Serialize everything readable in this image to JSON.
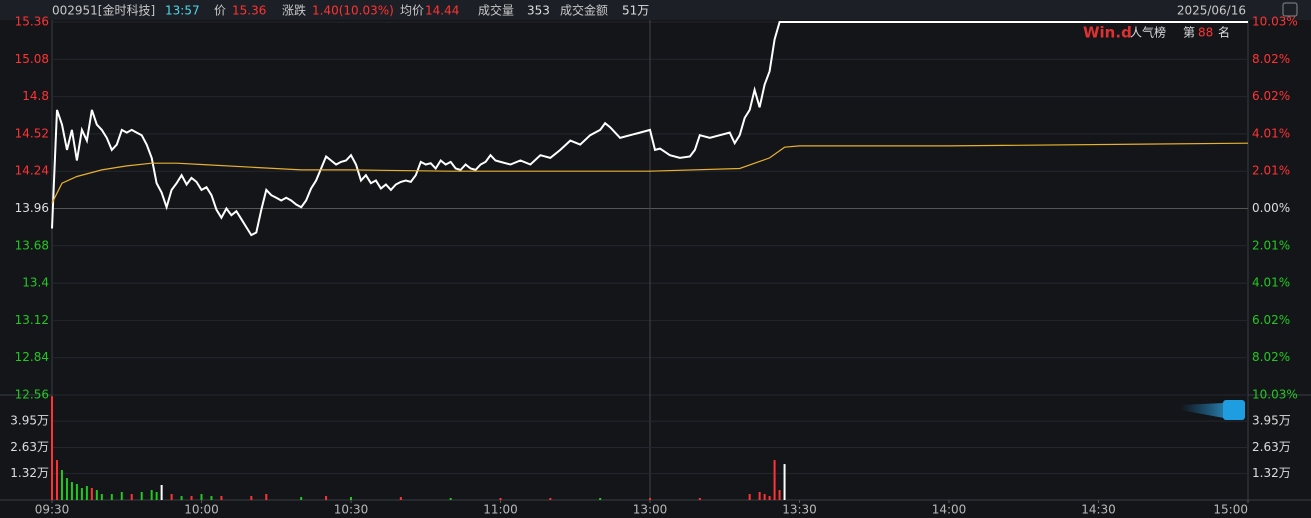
{
  "header": {
    "code": "002951[金时科技]",
    "time": "13:57",
    "price_label": "价",
    "price": 15.36,
    "change_label": "涨跌",
    "change": "1.40(10.03%)",
    "avg_label": "均价",
    "avg": 14.44,
    "vol_label": "成交量",
    "vol": 353,
    "amount_label": "成交金额",
    "amount": "51万",
    "date": "2025/06/16"
  },
  "rank": {
    "logo": "Win.d",
    "title": "人气榜",
    "prefix": "第",
    "rank": 88,
    "suffix": "名"
  },
  "colors": {
    "up": "#ff3333",
    "down": "#22c822",
    "flat": "#dddddd"
  },
  "chart_data": [
    {
      "type": "line",
      "xlim": [
        0,
        240
      ],
      "xticks": [
        {
          "value": 0,
          "label": "09:30"
        },
        {
          "value": 30,
          "label": "10:00"
        },
        {
          "value": 60,
          "label": "10:30"
        },
        {
          "value": 90,
          "label": "11:00"
        },
        {
          "value": 120,
          "label": "13:00"
        },
        {
          "value": 150,
          "label": "13:30"
        },
        {
          "value": 180,
          "label": "14:00"
        },
        {
          "value": 210,
          "label": "14:30"
        },
        {
          "value": 240,
          "label": "15:00"
        }
      ],
      "session_break": 120,
      "ylim": [
        12.56,
        15.36
      ],
      "yticks": [
        12.56,
        12.84,
        13.12,
        13.4,
        13.68,
        13.96,
        14.24,
        14.52,
        14.8,
        15.08,
        15.36
      ],
      "prev_close": 13.96,
      "y2lim": [
        -10.03,
        10.03
      ],
      "y2ticks": [
        {
          "value": -10.03,
          "label": "10.03%"
        },
        {
          "value": -8.02,
          "label": "8.02%"
        },
        {
          "value": -6.02,
          "label": "6.02%"
        },
        {
          "value": -4.01,
          "label": "4.01%"
        },
        {
          "value": -2.01,
          "label": "2.01%"
        },
        {
          "value": 0,
          "label": "0.00%"
        },
        {
          "value": 2.01,
          "label": "2.01%"
        },
        {
          "value": 4.01,
          "label": "4.01%"
        },
        {
          "value": 6.02,
          "label": "6.02%"
        },
        {
          "value": 8.02,
          "label": "8.02%"
        },
        {
          "value": 10.03,
          "label": "10.03%"
        }
      ],
      "grid": true,
      "series": [
        {
          "color": "#ffffff",
          "x": [
            0,
            1,
            2,
            3,
            4,
            5,
            6,
            7,
            8,
            9,
            10,
            11,
            12,
            13,
            14,
            15,
            16,
            17,
            18,
            19,
            20,
            21,
            22,
            23,
            24,
            25,
            26,
            27,
            28,
            29,
            30,
            31,
            32,
            33,
            34,
            35,
            36,
            37,
            38,
            39,
            40,
            41,
            42,
            43,
            44,
            45,
            46,
            47,
            48,
            49,
            50,
            51,
            52,
            53,
            54,
            55,
            56,
            57,
            58,
            59,
            60,
            61,
            62,
            63,
            64,
            65,
            66,
            67,
            68,
            69,
            70,
            71,
            72,
            73,
            74,
            75,
            76,
            77,
            78,
            79,
            80,
            81,
            82,
            83,
            84,
            85,
            86,
            87,
            88,
            89,
            90,
            92,
            94,
            96,
            98,
            100,
            102,
            104,
            106,
            108,
            110,
            111,
            112,
            114,
            116,
            118,
            120,
            121,
            122,
            124,
            126,
            128,
            129,
            130,
            132,
            134,
            136,
            137,
            138,
            139,
            140,
            141,
            142,
            143,
            144,
            145,
            146,
            240
          ],
          "values": [
            13.81,
            14.7,
            14.59,
            14.4,
            14.55,
            14.32,
            14.55,
            14.47,
            14.7,
            14.59,
            14.55,
            14.49,
            14.4,
            14.44,
            14.55,
            14.53,
            14.55,
            14.53,
            14.51,
            14.44,
            14.34,
            14.15,
            14.08,
            13.97,
            14.1,
            14.15,
            14.21,
            14.14,
            14.19,
            14.16,
            14.1,
            14.12,
            14.06,
            13.95,
            13.89,
            13.96,
            13.91,
            13.94,
            13.88,
            13.82,
            13.76,
            13.78,
            13.95,
            14.1,
            14.06,
            14.04,
            14.02,
            14.04,
            14.02,
            13.99,
            13.97,
            14.02,
            14.11,
            14.17,
            14.26,
            14.35,
            14.32,
            14.29,
            14.31,
            14.32,
            14.36,
            14.29,
            14.17,
            14.21,
            14.15,
            14.17,
            14.11,
            14.14,
            14.1,
            14.14,
            14.16,
            14.17,
            14.16,
            14.21,
            14.31,
            14.29,
            14.3,
            14.26,
            14.32,
            14.29,
            14.31,
            14.26,
            14.25,
            14.29,
            14.26,
            14.25,
            14.29,
            14.31,
            14.36,
            14.32,
            14.31,
            14.29,
            14.32,
            14.29,
            14.36,
            14.34,
            14.4,
            14.47,
            14.44,
            14.51,
            14.55,
            14.6,
            14.57,
            14.49,
            14.51,
            14.53,
            14.55,
            14.4,
            14.41,
            14.36,
            14.34,
            14.35,
            14.4,
            14.51,
            14.49,
            14.51,
            14.53,
            14.45,
            14.51,
            14.64,
            14.7,
            14.85,
            14.72,
            14.89,
            14.99,
            15.23,
            15.36,
            15.36
          ]
        },
        {
          "color": "#e8b030",
          "x": [
            0,
            2,
            5,
            10,
            15,
            20,
            25,
            30,
            40,
            50,
            60,
            80,
            100,
            120,
            138,
            144,
            147,
            150,
            180,
            240
          ],
          "values": [
            14.0,
            14.15,
            14.2,
            14.25,
            14.28,
            14.3,
            14.3,
            14.29,
            14.27,
            14.25,
            14.25,
            14.24,
            14.24,
            14.24,
            14.26,
            14.34,
            14.42,
            14.43,
            14.43,
            14.45
          ]
        }
      ]
    },
    {
      "type": "bar",
      "xlim": [
        0,
        240
      ],
      "ylim": [
        0,
        5.26
      ],
      "yticks": [
        {
          "value": 1.32,
          "label": "1.32万"
        },
        {
          "value": 2.63,
          "label": "2.63万"
        },
        {
          "value": 3.95,
          "label": "3.95万"
        }
      ],
      "x": [
        0,
        1,
        2,
        3,
        4,
        5,
        6,
        7,
        8,
        9,
        10,
        12,
        14,
        16,
        18,
        20,
        21,
        22,
        24,
        26,
        28,
        30,
        32,
        34,
        40,
        43,
        50,
        55,
        60,
        70,
        80,
        90,
        100,
        110,
        120,
        130,
        140,
        142,
        143,
        144,
        145,
        146,
        147
      ],
      "values": [
        5.2,
        2.0,
        1.5,
        1.1,
        0.9,
        0.8,
        0.6,
        0.7,
        0.6,
        0.5,
        0.3,
        0.3,
        0.4,
        0.3,
        0.4,
        0.5,
        0.4,
        0.75,
        0.3,
        0.2,
        0.2,
        0.3,
        0.2,
        0.2,
        0.2,
        0.3,
        0.15,
        0.2,
        0.15,
        0.15,
        0.1,
        0.1,
        0.1,
        0.1,
        0.1,
        0.1,
        0.3,
        0.4,
        0.3,
        0.2,
        2.0,
        0.5,
        1.8
      ],
      "colors": [
        "#ff3333",
        "#ff3333",
        "#22c822",
        "#22c822",
        "#22c822",
        "#22c822",
        "#22c822",
        "#22c822",
        "#ff3333",
        "#22c822",
        "#22c822",
        "#22c822",
        "#22c822",
        "#ff3333",
        "#22c822",
        "#22c822",
        "#22c822",
        "#ffffff",
        "#ff3333",
        "#22c822",
        "#ff3333",
        "#22c822",
        "#22c822",
        "#ff3333",
        "#ff3333",
        "#ff3333",
        "#22c822",
        "#ff3333",
        "#22c822",
        "#ff3333",
        "#22c822",
        "#ff3333",
        "#ff3333",
        "#22c822",
        "#ff3333",
        "#ff3333",
        "#ff3333",
        "#ff3333",
        "#ff3333",
        "#ff3333",
        "#ff3333",
        "#ff3333",
        "#ffffff"
      ]
    }
  ]
}
